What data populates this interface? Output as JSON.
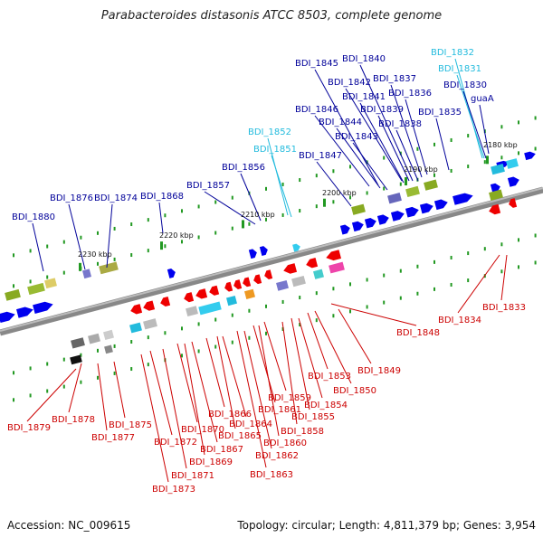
{
  "title": "Parabacteroides distasonis ATCC 8503, complete genome",
  "footer": {
    "accession": "Accession: NC_009615",
    "summary": "Topology: circular; Length: 4,811,379 bp; Genes: 3,954"
  },
  "colors": {
    "forward_gene": "#0000ee",
    "reverse_gene": "#ee0000",
    "highlight_gene": "#33ccee",
    "forward_label": "#000099",
    "reverse_label": "#cc0000",
    "highlight_label": "#22bbdd",
    "backbone": "#888888",
    "tick": "#229922"
  },
  "kbp_labels": [
    "2180 kbp",
    "2190 kbp",
    "2200 kbp",
    "2210 kbp",
    "2220 kbp",
    "2230 kbp"
  ],
  "upper_labels": [
    {
      "text": "BDI_1832",
      "kind": "highlight"
    },
    {
      "text": "BDI_1831",
      "kind": "highlight"
    },
    {
      "text": "BDI_1830",
      "kind": "forward"
    },
    {
      "text": "guaA",
      "kind": "forward"
    },
    {
      "text": "BDI_1840",
      "kind": "forward"
    },
    {
      "text": "BDI_1845",
      "kind": "forward"
    },
    {
      "text": "BDI_1837",
      "kind": "forward"
    },
    {
      "text": "BDI_1842",
      "kind": "forward"
    },
    {
      "text": "BDI_1836",
      "kind": "forward"
    },
    {
      "text": "BDI_1841",
      "kind": "forward"
    },
    {
      "text": "BDI_1846",
      "kind": "forward"
    },
    {
      "text": "BDI_1839",
      "kind": "forward"
    },
    {
      "text": "BDI_1835",
      "kind": "forward"
    },
    {
      "text": "BDI_1844",
      "kind": "forward"
    },
    {
      "text": "BDI_1838",
      "kind": "forward"
    },
    {
      "text": "BDI_1852",
      "kind": "highlight"
    },
    {
      "text": "BDI_1843",
      "kind": "forward"
    },
    {
      "text": "BDI_1851",
      "kind": "highlight"
    },
    {
      "text": "BDI_1847",
      "kind": "forward"
    },
    {
      "text": "BDI_1856",
      "kind": "forward"
    },
    {
      "text": "BDI_1857",
      "kind": "forward"
    },
    {
      "text": "BDI_1876",
      "kind": "forward"
    },
    {
      "text": "BDI_1874",
      "kind": "forward"
    },
    {
      "text": "BDI_1868",
      "kind": "forward"
    },
    {
      "text": "BDI_1880",
      "kind": "forward"
    }
  ],
  "lower_labels": [
    "BDI_1833",
    "BDI_1834",
    "BDI_1848",
    "BDI_1849",
    "BDI_1853",
    "BDI_1850",
    "BDI_1854",
    "BDI_1859",
    "BDI_1855",
    "BDI_1861",
    "BDI_1858",
    "BDI_1866",
    "BDI_1864",
    "BDI_1860",
    "BDI_1870",
    "BDI_1865",
    "BDI_1862",
    "BDI_1867",
    "BDI_1872",
    "BDI_1869",
    "BDI_1863",
    "BDI_1871",
    "BDI_1873",
    "BDI_1879",
    "BDI_1878",
    "BDI_1875",
    "BDI_1877"
  ]
}
